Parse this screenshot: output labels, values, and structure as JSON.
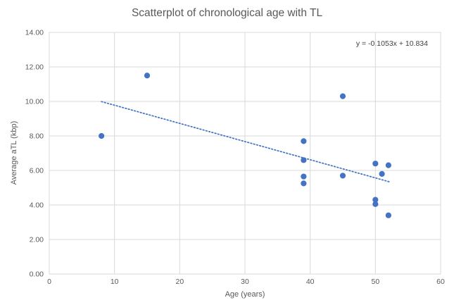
{
  "chart": {
    "title": "Scatterplot of chronological age with TL",
    "equation_label": "y = -0.1053x + 10.834",
    "xlabel": "Age (years)",
    "ylabel": "Average aTL (kbp)"
  },
  "chart_data": {
    "type": "scatter",
    "title": "Scatterplot of chronological age with TL",
    "xlabel": "Age (years)",
    "ylabel": "Average aTL (kbp)",
    "xlim": [
      0,
      60
    ],
    "ylim": [
      0,
      14
    ],
    "x_tick_labels": [
      "0",
      "10",
      "20",
      "30",
      "40",
      "50",
      "60"
    ],
    "y_tick_labels": [
      "0.00",
      "2.00",
      "4.00",
      "6.00",
      "8.00",
      "10.00",
      "12.00",
      "14.00"
    ],
    "grid": true,
    "legend": "none",
    "points": [
      [
        8,
        8.0
      ],
      [
        15,
        11.5
      ],
      [
        39,
        7.7
      ],
      [
        39,
        6.6
      ],
      [
        39,
        5.65
      ],
      [
        39,
        5.25
      ],
      [
        45,
        10.3
      ],
      [
        45,
        5.7
      ],
      [
        50,
        6.4
      ],
      [
        50,
        4.3
      ],
      [
        50,
        4.05
      ],
      [
        51,
        5.8
      ],
      [
        52,
        6.3
      ],
      [
        52,
        3.4
      ]
    ],
    "trendline": {
      "style": "dotted",
      "slope": -0.1053,
      "intercept": 10.834,
      "x_start": 8,
      "x_end": 52.3,
      "label": "y = -0.1053x + 10.834"
    },
    "colors": {
      "marker": "#4472C4",
      "trendline": "#4472C4",
      "gridline": "#D9D9D9",
      "axis_text": "#595959",
      "title_text": "#595959",
      "background": "#FFFFFF"
    }
  }
}
